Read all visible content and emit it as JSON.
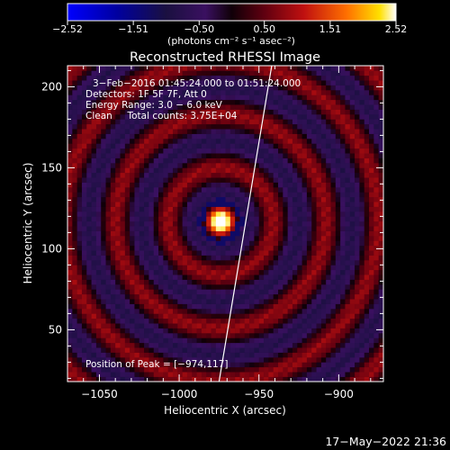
{
  "chart_data": {
    "type": "heatmap",
    "title": "Reconstructed RHESSI Image",
    "xlabel": "Heliocentric X (arcsec)",
    "ylabel": "Heliocentric Y (arcsec)",
    "xlim": [
      -1070,
      -872
    ],
    "ylim": [
      18,
      213
    ],
    "xticks": [
      -1050,
      -1000,
      -950,
      -900
    ],
    "xtick_labels": [
      "−1050",
      "−1000",
      "−950",
      "−900"
    ],
    "yticks": [
      50,
      100,
      150,
      200
    ],
    "ytick_labels": [
      "50",
      "100",
      "150",
      "200"
    ],
    "colorbar": {
      "min": -2.52,
      "max": 2.52,
      "ticks": [
        -2.52,
        -1.51,
        -0.5,
        0.5,
        1.51,
        2.52
      ],
      "tick_labels": [
        "−2.52",
        "−1.51",
        "−0.50",
        "0.50",
        "1.51",
        "2.52"
      ],
      "units": "(photons cm⁻² s⁻¹ asec⁻²)",
      "colormap": [
        "#0000ff",
        "#ffffff"
      ]
    },
    "annotations": [
      "3−Feb−2016 01:45:24.000 to 01:51:24.000",
      "Detectors: 1F 5F 7F, Att 0",
      "Energy Range: 3.0 − 6.0 keV",
      "Clean     Total counts: 3.75E+04"
    ],
    "peak_label": "Position of Peak = [−974,117]",
    "peak": {
      "x": -974,
      "y": 117,
      "value": 2.52
    },
    "limb_line": [
      [
        -975,
        18
      ],
      [
        -942,
        213
      ]
    ],
    "ring_model": {
      "center": [
        -974,
        117
      ],
      "ring_period_arcsec": 33,
      "ring_amplitude": 0.95,
      "core_sigma_arcsec": 6,
      "grid_step_arcsec": 3
    }
  },
  "footer": {
    "timestamp": "17−May−2022 21:36"
  },
  "colors": {
    "background": "#000000",
    "foreground": "#ffffff",
    "limb": "#ffffff"
  }
}
